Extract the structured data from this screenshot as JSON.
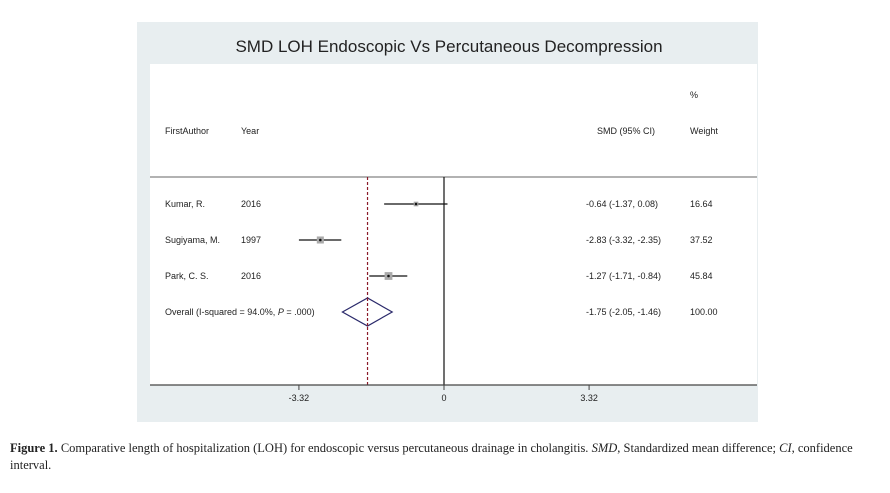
{
  "chart_data": {
    "type": "forest",
    "title": "SMD LOH Endoscopic Vs Percutaneous Decompression",
    "headers": {
      "author": "FirstAuthor",
      "year": "Year",
      "smd": "SMD (95% CI)",
      "weight_top": "%",
      "weight": "Weight"
    },
    "studies": [
      {
        "author": "Kumar, R.",
        "year": "2016",
        "smd": -0.64,
        "lo": -1.37,
        "hi": 0.08,
        "label": "-0.64 (-1.37, 0.08)",
        "weight": 16.64,
        "weight_label": "16.64"
      },
      {
        "author": "Sugiyama, M.",
        "year": "1997",
        "smd": -2.83,
        "lo": -3.32,
        "hi": -2.35,
        "label": "-2.83 (-3.32, -2.35)",
        "weight": 37.52,
        "weight_label": "37.52"
      },
      {
        "author": "Park, C. S.",
        "year": "2016",
        "smd": -1.27,
        "lo": -1.71,
        "hi": -0.84,
        "label": "-1.27 (-1.71, -0.84)",
        "weight": 45.84,
        "weight_label": "45.84"
      }
    ],
    "overall": {
      "author": "Overall (I-squared = 94.0%, ",
      "p_label": "P",
      "p_rest": " = .000)",
      "smd": -1.75,
      "lo": -2.05,
      "hi": -1.46,
      "label": "-1.75 (-2.05, -1.46)",
      "weight_label": "100.00"
    },
    "x_ticks": [
      -3.32,
      0,
      3.32
    ],
    "x_tick_labels": [
      "-3.32",
      "0",
      "3.32"
    ],
    "xlim": [
      -6.9,
      7.2
    ],
    "colors": {
      "background": "#e8eef0",
      "plot": "#ffffff",
      "overall_diamond": "#2b2a6b",
      "dashed": "#8b1a2a",
      "box": "#aaaaaa"
    }
  },
  "caption": {
    "label": "Figure 1.",
    "text1": " Comparative length of hospitalization (LOH) for endoscopic versus percutaneous drainage in cholangitis. ",
    "smd_abbr": "SMD",
    "text2": ", Standardized mean difference; ",
    "ci_abbr": "CI",
    "text3": ", confidence interval."
  }
}
